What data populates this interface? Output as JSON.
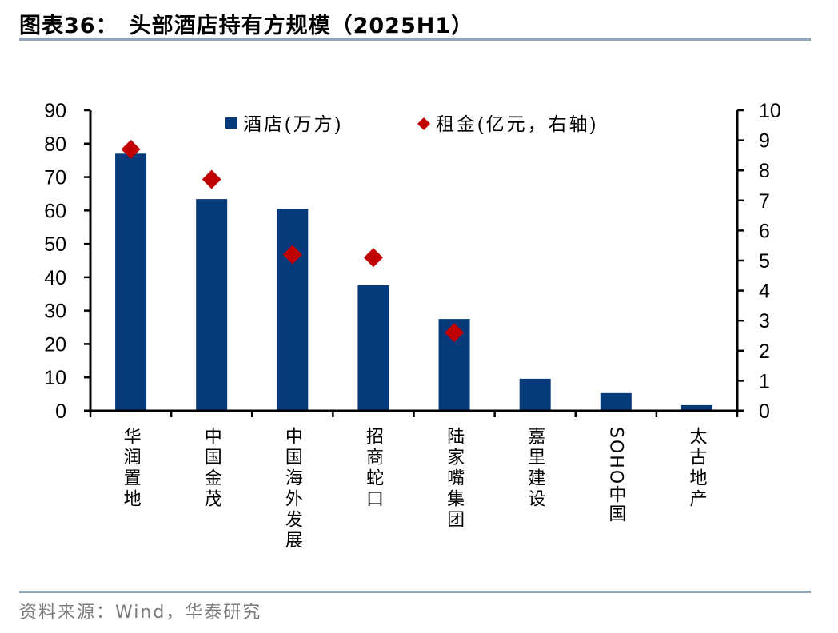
{
  "header": {
    "figure_label": "图表36：",
    "title": "头部酒店持有方规模（2025H1）"
  },
  "footer": {
    "source": "资料来源：Wind，华泰研究"
  },
  "colors": {
    "bar": "#063a7a",
    "marker": "#c00000",
    "rule": "#8fa4b8",
    "source_text": "#7a7a7a"
  },
  "legend": {
    "bar_label": "酒店(万方)",
    "marker_label": "租金(亿元，右轴)"
  },
  "categories": [
    "华润置地",
    "中国金茂",
    "中国海外发展",
    "招商蛇口",
    "陆家嘴集团",
    "嘉里建设",
    "SOHO中国",
    "太古地产"
  ],
  "chart_data": {
    "type": "bar",
    "title": "头部酒店持有方规模（2025H1）",
    "categories": [
      "华润置地",
      "中国金茂",
      "中国海外发展",
      "招商蛇口",
      "陆家嘴集团",
      "嘉里建设",
      "SOHO中国",
      "太古地产"
    ],
    "series": [
      {
        "name": "酒店(万方)",
        "type": "bar",
        "axis": "left",
        "values": [
          77.0,
          63.4,
          60.5,
          37.6,
          27.5,
          9.6,
          5.3,
          1.7
        ]
      },
      {
        "name": "租金(亿元，右轴)",
        "type": "scatter",
        "marker": "diamond",
        "axis": "right",
        "values": [
          8.7,
          7.7,
          5.2,
          5.1,
          2.6,
          null,
          null,
          null
        ]
      }
    ],
    "xlabel": "",
    "ylabel": "",
    "ylim": [
      0,
      90
    ],
    "yticks": [
      0,
      10,
      20,
      30,
      40,
      50,
      60,
      70,
      80,
      90
    ],
    "y2lim": [
      0,
      10
    ],
    "y2ticks": [
      0,
      1,
      2,
      3,
      4,
      5,
      6,
      7,
      8,
      9,
      10
    ],
    "grid": false,
    "legend_position": "top-inside"
  }
}
